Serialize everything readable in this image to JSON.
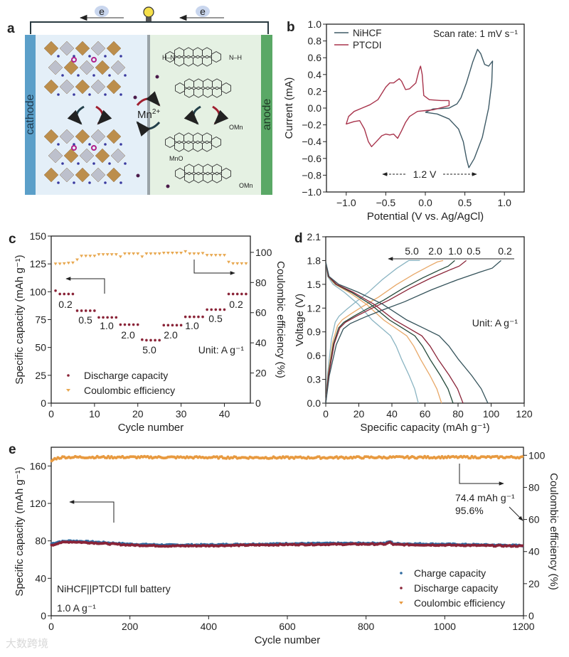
{
  "figure": {
    "panel_labels": [
      "a",
      "b",
      "c",
      "d",
      "e"
    ],
    "watermark": "大数跨境"
  },
  "schematic": {
    "cathode_label": "cathode",
    "anode_label": "anode",
    "ion_label": "Mn",
    "ion_charge": "2+",
    "electron_labels": [
      "e",
      "e"
    ],
    "molecule_labels": [
      "H–N",
      "N–H",
      "OMn",
      "MnO",
      "OMn"
    ],
    "colors": {
      "cathode": "#5b9fc9",
      "anode": "#5aa866",
      "cathode_bg": "#e4eff8",
      "anode_bg": "#e5f1e3",
      "separator": "#9aa3a8"
    }
  },
  "chart_data": [
    {
      "panel": "b",
      "type": "line",
      "xlabel": "Potential (V vs. Ag/AgCl)",
      "ylabel": "Current (mA)",
      "xlim": [
        -1.25,
        1.25
      ],
      "ylim": [
        -1.0,
        1.0
      ],
      "xticks": [
        -1.0,
        -0.5,
        0.0,
        0.5,
        1.0
      ],
      "xtick_labels": [
        "−1.0",
        "−0.5",
        "0.0",
        "0.5",
        "1.0"
      ],
      "yticks": [
        -1.0,
        -0.8,
        -0.6,
        -0.4,
        -0.2,
        0.0,
        0.2,
        0.4,
        0.6,
        0.8,
        1.0
      ],
      "ytick_labels": [
        "−1.0",
        "−0.8",
        "−0.6",
        "−0.4",
        "−0.2",
        "0.0",
        "0.2",
        "0.4",
        "0.6",
        "0.8",
        "1.0"
      ],
      "legend": "top-left",
      "annotations": {
        "scan_rate": "Scan rate: 1 mV s⁻¹",
        "window": "1.2 V"
      },
      "series": [
        {
          "name": "NiHCF",
          "color": "#3e5a66",
          "x": [
            0.0,
            0.1,
            0.3,
            0.4,
            0.45,
            0.52,
            0.6,
            0.66,
            0.7,
            0.75,
            0.8,
            0.85,
            0.84,
            0.8,
            0.72,
            0.62,
            0.55,
            0.52,
            0.48,
            0.42,
            0.3,
            0.15,
            0.0
          ],
          "y": [
            -0.05,
            -0.01,
            0.0,
            0.05,
            0.12,
            0.3,
            0.55,
            0.7,
            0.65,
            0.52,
            0.5,
            0.56,
            0.3,
            0.0,
            -0.35,
            -0.6,
            -0.71,
            -0.6,
            -0.4,
            -0.25,
            -0.13,
            -0.07,
            -0.05
          ]
        },
        {
          "name": "PTCDI",
          "color": "#a8344c",
          "x": [
            0.3,
            0.3,
            0.1,
            0.0,
            -0.1,
            -0.2,
            -0.25,
            -0.3,
            -0.35,
            -0.4,
            -0.45,
            -0.5,
            -0.55,
            -0.62,
            -0.68,
            -0.72,
            -0.77,
            -0.83,
            -0.9,
            -1.0,
            -0.97,
            -0.9,
            -0.8,
            -0.7,
            -0.6,
            -0.5,
            -0.45,
            -0.4,
            -0.33,
            -0.3,
            -0.25,
            -0.2,
            -0.12,
            -0.08,
            -0.06,
            -0.04,
            -0.02,
            0.05,
            0.2,
            0.3
          ],
          "y": [
            0.09,
            0.03,
            -0.02,
            -0.03,
            -0.04,
            -0.1,
            -0.17,
            -0.27,
            -0.36,
            -0.31,
            -0.32,
            -0.31,
            -0.33,
            -0.4,
            -0.46,
            -0.4,
            -0.25,
            -0.15,
            -0.16,
            -0.19,
            -0.1,
            -0.04,
            0.0,
            0.04,
            0.1,
            0.25,
            0.3,
            0.3,
            0.35,
            0.32,
            0.22,
            0.23,
            0.3,
            0.45,
            0.5,
            0.4,
            0.15,
            0.1,
            0.09,
            0.09
          ]
        }
      ]
    },
    {
      "panel": "c",
      "type": "scatter",
      "xlabel": "Cycle number",
      "ylabel": "Specific capacity (mAh g⁻¹)",
      "ylabel_right": "Coulombic efficiency (%)",
      "xlim": [
        0,
        46
      ],
      "ylim": [
        0,
        150
      ],
      "ylim_right": [
        0,
        110.8
      ],
      "xticks": [
        0,
        10,
        20,
        30,
        40
      ],
      "xtick_labels": [
        "0",
        "10",
        "20",
        "30",
        "40"
      ],
      "yticks": [
        0,
        25,
        50,
        75,
        100,
        125,
        150
      ],
      "ytick_labels": [
        "0",
        "25",
        "50",
        "75",
        "100",
        "125",
        "150"
      ],
      "yticks_right": [
        0,
        20,
        40,
        60,
        80,
        100
      ],
      "ytick_labels_right": [
        "0",
        "20",
        "40",
        "60",
        "80",
        "100"
      ],
      "legend": "bottom-left",
      "rate_labels": [
        "0.2",
        "0.5",
        "1.0",
        "2.0",
        "5.0",
        "2.0",
        "1.0",
        "0.5",
        "0.2"
      ],
      "unit_label": "Unit: A g⁻¹",
      "x": [
        1,
        2,
        3,
        4,
        5,
        6,
        7,
        8,
        9,
        10,
        11,
        12,
        13,
        14,
        15,
        16,
        17,
        18,
        19,
        20,
        21,
        22,
        23,
        24,
        25,
        26,
        27,
        28,
        29,
        30,
        31,
        32,
        33,
        34,
        35,
        36,
        37,
        38,
        39,
        40,
        41,
        42,
        43,
        44,
        45
      ],
      "series": [
        {
          "name": "Discharge capacity",
          "color": "#8a2438",
          "axis": "left",
          "values": [
            101,
            98,
            98,
            98,
            98,
            83,
            83,
            83,
            83,
            83,
            77,
            77,
            77,
            77,
            77,
            70.5,
            70.5,
            70.5,
            70.5,
            70.5,
            57,
            56.5,
            56.5,
            56.5,
            56.5,
            70,
            70,
            70,
            70,
            70,
            77.5,
            77.5,
            77.5,
            77.5,
            77.5,
            84,
            84,
            84,
            84,
            84,
            98,
            98,
            98,
            98,
            98
          ]
        },
        {
          "name": "Coulombic efficiency",
          "color": "#e8a850",
          "axis": "right",
          "values": [
            92.3,
            92.3,
            92.5,
            92.8,
            93,
            95,
            97.5,
            97.5,
            97.5,
            97.5,
            98.5,
            98.5,
            98.5,
            98.5,
            98.5,
            97,
            99,
            99,
            99,
            99,
            97,
            99,
            99,
            99,
            99,
            99.5,
            99.5,
            99.5,
            99.5,
            99.5,
            100.5,
            99,
            99,
            99,
            99.3,
            98,
            98,
            98,
            98,
            98,
            93.5,
            92.5,
            92.5,
            92.5,
            92.5
          ]
        }
      ]
    },
    {
      "panel": "d",
      "type": "line",
      "xlabel": "Specific capacity (mAh g⁻¹)",
      "ylabel": "Voltage (V)",
      "xlim": [
        0,
        120
      ],
      "ylim": [
        0,
        2.1
      ],
      "xticks": [
        0,
        20,
        40,
        60,
        80,
        100,
        120
      ],
      "xtick_labels": [
        "0",
        "20",
        "40",
        "60",
        "80",
        "100",
        "120"
      ],
      "yticks": [
        0,
        0.3,
        0.6,
        0.9,
        1.2,
        1.5,
        1.8,
        2.1
      ],
      "ytick_labels": [
        "0.0",
        "0.3",
        "0.6",
        "0.9",
        "1.2",
        "1.5",
        "1.8",
        "2.1"
      ],
      "unit_label": "Unit: A g⁻¹",
      "series": [
        {
          "name": "5.0",
          "color": "#8ab4c2",
          "charge_capacity": 57,
          "discharge_capacity": 56,
          "speed": 1.25
        },
        {
          "name": "2.0",
          "color": "#e8a868",
          "charge_capacity": 71,
          "discharge_capacity": 70,
          "speed": 1.1
        },
        {
          "name": "1.0",
          "color": "#244a3a",
          "charge_capacity": 78,
          "discharge_capacity": 77,
          "speed": 1.0
        },
        {
          "name": "0.5",
          "color": "#8a2438",
          "charge_capacity": 85,
          "discharge_capacity": 83,
          "speed": 1.0
        },
        {
          "name": "0.2",
          "color": "#34525a",
          "charge_capacity": 106,
          "discharge_capacity": 98,
          "speed": 0.95
        }
      ]
    },
    {
      "panel": "e",
      "type": "scatter",
      "xlabel": "Cycle number",
      "ylabel": "Specific capacity (mAh g⁻¹)",
      "ylabel_right": "Coulombic efficiency (%)",
      "xlim": [
        0,
        1200
      ],
      "ylim": [
        0,
        180
      ],
      "ylim_right": [
        0,
        105
      ],
      "xticks": [
        0,
        200,
        400,
        600,
        800,
        1000,
        1200
      ],
      "xtick_labels": [
        "0",
        "200",
        "400",
        "600",
        "800",
        "1000",
        "1200"
      ],
      "yticks": [
        0,
        40,
        80,
        120,
        160
      ],
      "ytick_labels": [
        "0",
        "40",
        "80",
        "120",
        "160"
      ],
      "yticks_right": [
        0,
        20,
        40,
        60,
        80,
        100
      ],
      "ytick_labels_right": [
        "0",
        "20",
        "40",
        "60",
        "80",
        "100"
      ],
      "legend": "bottom-right",
      "annotations": {
        "battery": "NiHCF||PTCDI full battery",
        "rate": "1.0 A g⁻¹",
        "final_capacity": "74.4 mAh g⁻¹",
        "retention": "95.6%"
      },
      "series": [
        {
          "name": "Charge capacity",
          "color": "#2f6aa0",
          "axis": "left",
          "key_x": [
            1,
            20,
            50,
            100,
            200,
            300,
            400,
            600,
            800,
            850,
            860,
            870,
            1000,
            1200
          ],
          "key_y": [
            77,
            79,
            80,
            79,
            76.5,
            75.5,
            75.8,
            77,
            77.5,
            77.5,
            79.5,
            77,
            76.5,
            75
          ]
        },
        {
          "name": "Discharge capacity",
          "color": "#8a2438",
          "axis": "left",
          "key_x": [
            1,
            20,
            50,
            100,
            200,
            300,
            400,
            600,
            800,
            850,
            860,
            870,
            1000,
            1200
          ],
          "key_y": [
            75,
            78,
            79,
            78,
            75.5,
            74.5,
            74.8,
            76,
            76.5,
            76.5,
            78.5,
            76,
            75.5,
            74.4
          ]
        },
        {
          "name": "Coulombic efficiency",
          "color": "#e89a40",
          "axis": "right",
          "key_x": [
            1,
            10,
            30,
            200,
            600,
            1000,
            1200
          ],
          "key_y": [
            96.5,
            98,
            98.8,
            98.8,
            98.5,
            98.8,
            98.8
          ]
        }
      ]
    }
  ]
}
